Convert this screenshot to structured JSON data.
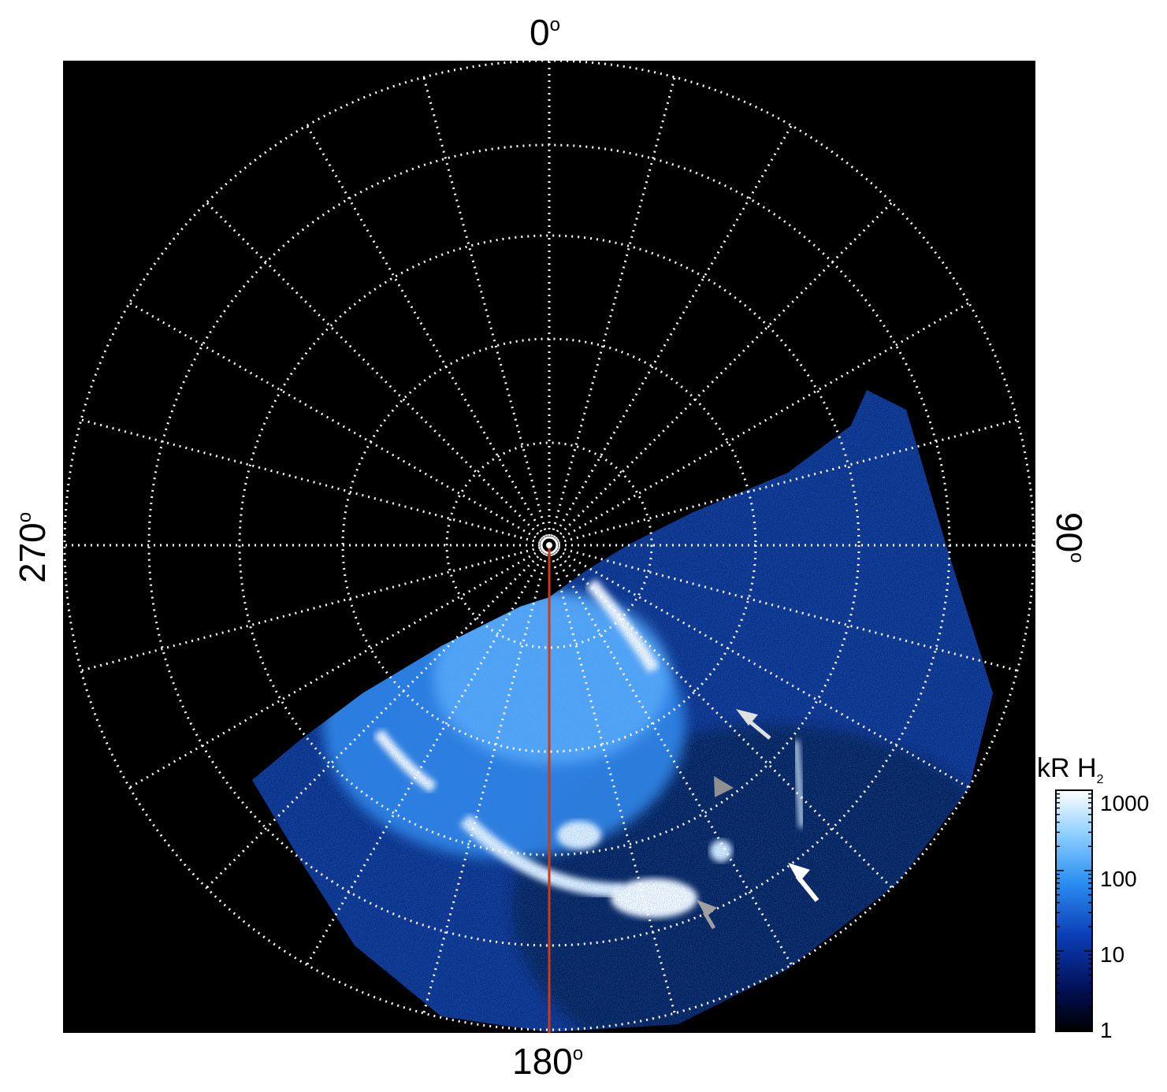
{
  "figure": {
    "direction_labels": {
      "top": "0",
      "right": "90",
      "bottom": "180",
      "left": "270"
    },
    "degree_symbol": "o"
  },
  "colorbar": {
    "title": "kR H",
    "title_subscript": "2",
    "scale": "log",
    "ticks": [
      "1000",
      "100",
      "10",
      "1"
    ],
    "colors": [
      "#ffffff",
      "#8fd0ff",
      "#2b8ff2",
      "#0c3fb8",
      "#021159",
      "#000000"
    ]
  },
  "grid": {
    "style": "dotted",
    "color": "#ffffff",
    "meridian_spacing_deg": 15,
    "rings": 5
  },
  "meridian_line_color": "#d13a10",
  "arrows": [
    {
      "color": "white",
      "name": "arrow-1"
    },
    {
      "color": "gray",
      "name": "arrow-2"
    },
    {
      "color": "gray",
      "name": "arrow-3"
    },
    {
      "color": "white",
      "name": "arrow-4"
    }
  ]
}
